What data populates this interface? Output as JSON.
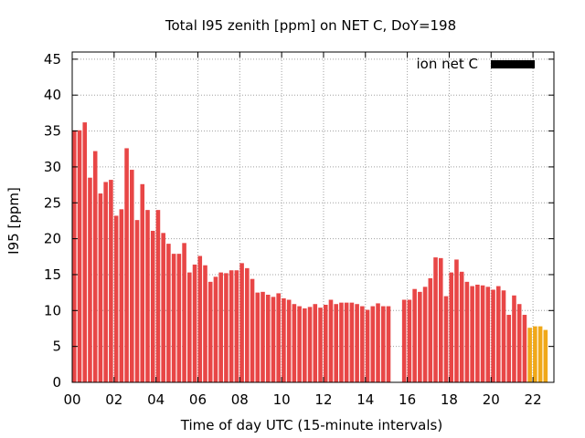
{
  "chart_data": {
    "type": "bar",
    "title": "Total I95 zenith [ppm] on NET C, DoY=198",
    "xlabel": "Time of day UTC (15-minute intervals)",
    "ylabel": "I95 [ppm]",
    "xlim": [
      0,
      23
    ],
    "ylim": [
      0,
      46
    ],
    "x_ticks": [
      {
        "value": 0,
        "label": "00"
      },
      {
        "value": 2,
        "label": "02"
      },
      {
        "value": 4,
        "label": "04"
      },
      {
        "value": 6,
        "label": "06"
      },
      {
        "value": 8,
        "label": "08"
      },
      {
        "value": 10,
        "label": "10"
      },
      {
        "value": 12,
        "label": "12"
      },
      {
        "value": 14,
        "label": "14"
      },
      {
        "value": 16,
        "label": "16"
      },
      {
        "value": 18,
        "label": "18"
      },
      {
        "value": 20,
        "label": "20"
      },
      {
        "value": 22,
        "label": "22"
      }
    ],
    "y_ticks": [
      0,
      5,
      10,
      15,
      20,
      25,
      30,
      35,
      40,
      45
    ],
    "grid": true,
    "legend": {
      "label": "ion net C",
      "position": "top-right",
      "color": "#000000"
    },
    "bar_width_hours": 0.2,
    "colors": {
      "normal": "#e84646",
      "highlight": "#f0a818"
    },
    "series": [
      {
        "points": [
          {
            "t": 0.0,
            "v": 35.1
          },
          {
            "t": 0.25,
            "v": 35.1
          },
          {
            "t": 0.5,
            "v": 36.2
          },
          {
            "t": 0.75,
            "v": 28.5
          },
          {
            "t": 1.0,
            "v": 32.2
          },
          {
            "t": 1.25,
            "v": 26.3
          },
          {
            "t": 1.5,
            "v": 27.9
          },
          {
            "t": 1.75,
            "v": 28.2
          },
          {
            "t": 2.0,
            "v": 23.2
          },
          {
            "t": 2.25,
            "v": 24.1
          },
          {
            "t": 2.5,
            "v": 32.6
          },
          {
            "t": 2.75,
            "v": 29.6
          },
          {
            "t": 3.0,
            "v": 22.6
          },
          {
            "t": 3.25,
            "v": 27.6
          },
          {
            "t": 3.5,
            "v": 24.0
          },
          {
            "t": 3.75,
            "v": 21.1
          },
          {
            "t": 4.0,
            "v": 24.0
          },
          {
            "t": 4.25,
            "v": 20.8
          },
          {
            "t": 4.5,
            "v": 19.3
          },
          {
            "t": 4.75,
            "v": 17.9
          },
          {
            "t": 5.0,
            "v": 17.9
          },
          {
            "t": 5.25,
            "v": 19.4
          },
          {
            "t": 5.5,
            "v": 15.3
          },
          {
            "t": 5.75,
            "v": 16.4
          },
          {
            "t": 6.0,
            "v": 17.6
          },
          {
            "t": 6.25,
            "v": 16.3
          },
          {
            "t": 6.5,
            "v": 14.0
          },
          {
            "t": 6.75,
            "v": 14.7
          },
          {
            "t": 7.0,
            "v": 15.3
          },
          {
            "t": 7.25,
            "v": 15.2
          },
          {
            "t": 7.5,
            "v": 15.6
          },
          {
            "t": 7.75,
            "v": 15.6
          },
          {
            "t": 8.0,
            "v": 16.6
          },
          {
            "t": 8.25,
            "v": 15.9
          },
          {
            "t": 8.5,
            "v": 14.4
          },
          {
            "t": 8.75,
            "v": 12.5
          },
          {
            "t": 9.0,
            "v": 12.6
          },
          {
            "t": 9.25,
            "v": 12.2
          },
          {
            "t": 9.5,
            "v": 11.9
          },
          {
            "t": 9.75,
            "v": 12.4
          },
          {
            "t": 10.0,
            "v": 11.7
          },
          {
            "t": 10.25,
            "v": 11.5
          },
          {
            "t": 10.5,
            "v": 10.9
          },
          {
            "t": 10.75,
            "v": 10.6
          },
          {
            "t": 11.0,
            "v": 10.3
          },
          {
            "t": 11.25,
            "v": 10.5
          },
          {
            "t": 11.5,
            "v": 10.9
          },
          {
            "t": 11.75,
            "v": 10.4
          },
          {
            "t": 12.0,
            "v": 10.8
          },
          {
            "t": 12.25,
            "v": 11.5
          },
          {
            "t": 12.5,
            "v": 10.9
          },
          {
            "t": 12.75,
            "v": 11.1
          },
          {
            "t": 13.0,
            "v": 11.1
          },
          {
            "t": 13.25,
            "v": 11.1
          },
          {
            "t": 13.5,
            "v": 10.9
          },
          {
            "t": 13.75,
            "v": 10.6
          },
          {
            "t": 14.0,
            "v": 10.1
          },
          {
            "t": 14.25,
            "v": 10.6
          },
          {
            "t": 14.5,
            "v": 11.0
          },
          {
            "t": 14.75,
            "v": 10.6
          },
          {
            "t": 15.0,
            "v": 10.6
          },
          {
            "t": 15.75,
            "v": 11.5
          },
          {
            "t": 16.0,
            "v": 11.5
          },
          {
            "t": 16.25,
            "v": 13.0
          },
          {
            "t": 16.5,
            "v": 12.6
          },
          {
            "t": 16.75,
            "v": 13.3
          },
          {
            "t": 17.0,
            "v": 14.5
          },
          {
            "t": 17.25,
            "v": 17.4
          },
          {
            "t": 17.5,
            "v": 17.3
          },
          {
            "t": 17.75,
            "v": 12.0
          },
          {
            "t": 18.0,
            "v": 15.3
          },
          {
            "t": 18.25,
            "v": 17.1
          },
          {
            "t": 18.5,
            "v": 15.4
          },
          {
            "t": 18.75,
            "v": 14.0
          },
          {
            "t": 19.0,
            "v": 13.4
          },
          {
            "t": 19.25,
            "v": 13.6
          },
          {
            "t": 19.5,
            "v": 13.5
          },
          {
            "t": 19.75,
            "v": 13.3
          },
          {
            "t": 20.0,
            "v": 12.9
          },
          {
            "t": 20.25,
            "v": 13.4
          },
          {
            "t": 20.5,
            "v": 12.8
          },
          {
            "t": 20.75,
            "v": 9.4
          },
          {
            "t": 21.0,
            "v": 12.1
          },
          {
            "t": 21.25,
            "v": 10.9
          },
          {
            "t": 21.5,
            "v": 9.4
          },
          {
            "t": 21.75,
            "v": 7.6,
            "highlight": true
          },
          {
            "t": 22.0,
            "v": 7.8,
            "highlight": true
          },
          {
            "t": 22.25,
            "v": 7.8,
            "highlight": true
          },
          {
            "t": 22.5,
            "v": 7.3,
            "highlight": true
          }
        ]
      }
    ]
  }
}
